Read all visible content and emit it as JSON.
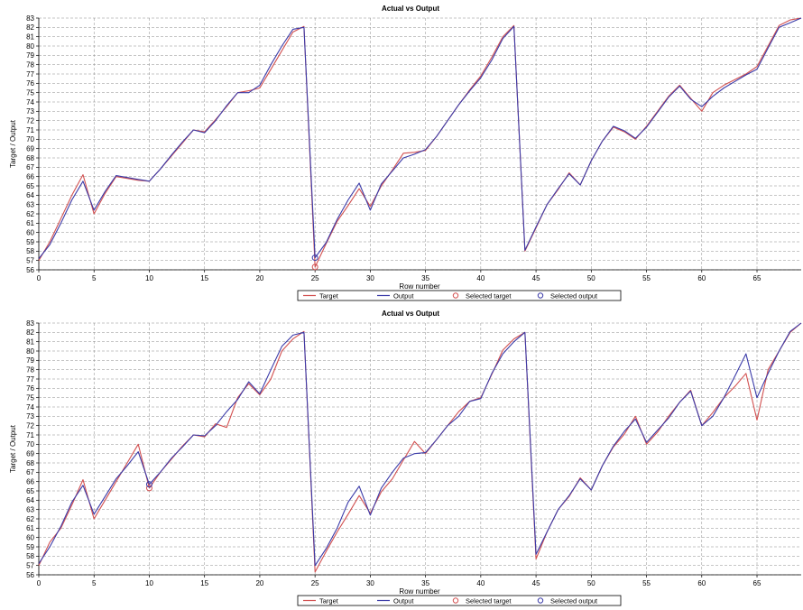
{
  "colors": {
    "target": "#d25050",
    "output": "#3a3aa8",
    "selected_target": "#d25050",
    "selected_output": "#3a3aa8",
    "grid": "#8c8c8c"
  },
  "chart_data": [
    {
      "type": "line",
      "title": "Actual vs Output",
      "xlabel": "Row number",
      "ylabel": "Target / Output",
      "xlim": [
        0,
        69
      ],
      "ylim": [
        56,
        83
      ],
      "x_ticks": [
        0,
        5,
        10,
        15,
        20,
        25,
        30,
        35,
        40,
        45,
        50,
        55,
        60,
        65
      ],
      "y_ticks": [
        56,
        57,
        58,
        59,
        60,
        61,
        62,
        63,
        64,
        65,
        66,
        67,
        68,
        69,
        70,
        71,
        72,
        73,
        74,
        75,
        76,
        77,
        78,
        79,
        80,
        81,
        82,
        83
      ],
      "grid": true,
      "legend_position": "bottom-right",
      "legend": [
        "Target",
        "Output",
        "Selected target",
        "Selected output"
      ],
      "x": [
        0,
        1,
        2,
        3,
        4,
        5,
        6,
        7,
        8,
        9,
        10,
        11,
        12,
        13,
        14,
        15,
        16,
        17,
        18,
        19,
        20,
        21,
        22,
        23,
        24,
        25,
        26,
        27,
        28,
        29,
        30,
        31,
        32,
        33,
        34,
        35,
        36,
        37,
        38,
        39,
        40,
        41,
        42,
        43,
        44,
        45,
        46,
        47,
        48,
        49,
        50,
        51,
        52,
        53,
        54,
        55,
        56,
        57,
        58,
        59,
        60,
        61,
        62,
        63,
        64,
        65,
        66,
        67,
        68,
        69
      ],
      "series": [
        {
          "name": "Target",
          "values": [
            57,
            59,
            61.5,
            64,
            66.2,
            62,
            64.2,
            66,
            65.8,
            65.6,
            65.5,
            66.8,
            68.2,
            69.6,
            71,
            70.8,
            72.1,
            73.5,
            75,
            75.2,
            75.5,
            77.5,
            79.5,
            81.5,
            82.1,
            56.3,
            58.8,
            61.2,
            62.9,
            64.7,
            62.8,
            65,
            66.7,
            68.5,
            68.6,
            68.8,
            70.3,
            72,
            73.7,
            75.3,
            76.8,
            78.8,
            81,
            82.2,
            58,
            60.5,
            63,
            64.6,
            66.4,
            65.1,
            67.7,
            69.8,
            71.3,
            70.8,
            70,
            71.4,
            73,
            74.6,
            75.8,
            74.4,
            73,
            75,
            75.8,
            76.4,
            77,
            77.8,
            80,
            82.2,
            82.8,
            83
          ]
        },
        {
          "name": "Output",
          "values": [
            57.2,
            58.7,
            61,
            63.5,
            65.5,
            62.4,
            64.4,
            66.1,
            65.9,
            65.7,
            65.5,
            66.8,
            68.3,
            69.7,
            71,
            70.7,
            72,
            73.6,
            75,
            75,
            75.8,
            78,
            80,
            81.8,
            82,
            57.3,
            58.9,
            61.4,
            63.5,
            65.3,
            62.4,
            65.2,
            66.6,
            68,
            68.4,
            68.9,
            70.3,
            72,
            73.7,
            75.2,
            76.6,
            78.5,
            80.8,
            82.1,
            58.1,
            60.6,
            63,
            64.7,
            66.3,
            65.1,
            67.7,
            69.8,
            71.4,
            70.9,
            70.1,
            71.3,
            72.9,
            74.5,
            75.7,
            74.3,
            73.5,
            74.6,
            75.5,
            76.2,
            76.9,
            77.5,
            79.8,
            82,
            82.5,
            83
          ]
        }
      ],
      "selected_target": [
        {
          "x": 25,
          "y": 56.3
        }
      ],
      "selected_output": [
        {
          "x": 25,
          "y": 57.3
        }
      ]
    },
    {
      "type": "line",
      "title": "Actual vs Output",
      "xlabel": "Row number",
      "ylabel": "Target / Output",
      "xlim": [
        0,
        69
      ],
      "ylim": [
        56,
        83
      ],
      "x_ticks": [
        0,
        5,
        10,
        15,
        20,
        25,
        30,
        35,
        40,
        45,
        50,
        55,
        60,
        65
      ],
      "y_ticks": [
        56,
        57,
        58,
        59,
        60,
        61,
        62,
        63,
        64,
        65,
        66,
        67,
        68,
        69,
        70,
        71,
        72,
        73,
        74,
        75,
        76,
        77,
        78,
        79,
        80,
        81,
        82,
        83
      ],
      "grid": true,
      "legend_position": "bottom-right",
      "legend": [
        "Target",
        "Output",
        "Selected target",
        "Selected output"
      ],
      "x": [
        0,
        1,
        2,
        3,
        4,
        5,
        6,
        7,
        8,
        9,
        10,
        11,
        12,
        13,
        14,
        15,
        16,
        17,
        18,
        19,
        20,
        21,
        22,
        23,
        24,
        25,
        26,
        27,
        28,
        29,
        30,
        31,
        32,
        33,
        34,
        35,
        36,
        37,
        38,
        39,
        40,
        41,
        42,
        43,
        44,
        45,
        46,
        47,
        48,
        49,
        50,
        51,
        52,
        53,
        54,
        55,
        56,
        57,
        58,
        59,
        60,
        61,
        62,
        63,
        64,
        65,
        66,
        67,
        68,
        69
      ],
      "series": [
        {
          "name": "Target",
          "values": [
            57,
            59.5,
            61,
            63.5,
            66.2,
            62,
            64,
            66,
            68,
            70,
            65.3,
            67,
            68.4,
            69.8,
            71,
            70.8,
            72.2,
            71.8,
            75,
            76.5,
            75.3,
            77,
            80,
            81.3,
            82.1,
            56.3,
            58.5,
            60.6,
            62.5,
            64.5,
            62.6,
            64.9,
            66.3,
            68.3,
            70.3,
            69,
            70.5,
            72,
            73.5,
            74.6,
            75,
            77.5,
            80.1,
            81.3,
            82,
            57.7,
            60.6,
            63,
            64.4,
            66.4,
            65.1,
            67.7,
            69.7,
            71.1,
            73,
            70,
            71.3,
            73,
            74.5,
            75.8,
            72,
            73.4,
            75,
            76.2,
            77.6,
            72.6,
            78,
            80,
            82,
            83
          ]
        },
        {
          "name": "Output",
          "values": [
            57.2,
            59,
            61.2,
            63.8,
            65.6,
            62.5,
            64.4,
            66.3,
            67.7,
            69.2,
            65.7,
            67,
            68.5,
            69.7,
            71,
            70.9,
            72,
            73.5,
            74.8,
            76.7,
            75.4,
            78,
            80.5,
            81.7,
            82,
            57,
            58.8,
            61,
            63.8,
            65.5,
            62.4,
            65.3,
            67,
            68.5,
            69,
            69.1,
            70.5,
            72,
            73,
            74.6,
            74.9,
            77.6,
            79.7,
            81,
            82,
            58.2,
            60.6,
            63,
            64.5,
            66.3,
            65.1,
            67.7,
            69.8,
            71.4,
            72.7,
            70.2,
            71.5,
            72.8,
            74.5,
            75.7,
            72,
            73,
            75,
            77.3,
            79.7,
            75,
            77.6,
            80,
            82.1,
            83
          ]
        }
      ],
      "selected_target": [
        {
          "x": 10,
          "y": 65.3
        }
      ],
      "selected_output": [
        {
          "x": 10,
          "y": 65.7
        }
      ]
    }
  ]
}
